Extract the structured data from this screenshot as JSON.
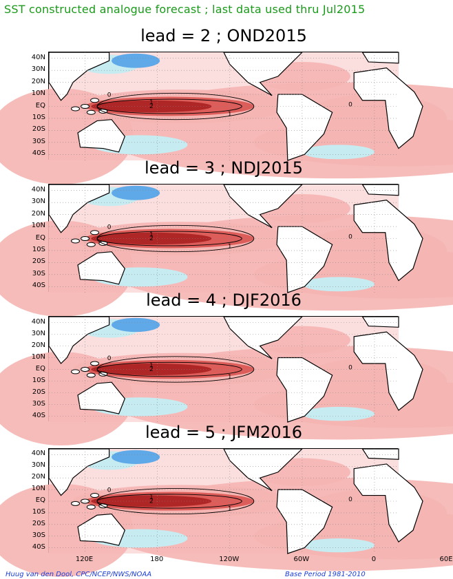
{
  "title": "SST constructed analogue forecast ; last data used thru Jul2015",
  "panels": [
    {
      "label": "lead = 2 ; OND2015"
    },
    {
      "label": "lead = 3 ; NDJ2015"
    },
    {
      "label": "lead = 4 ; DJF2016"
    },
    {
      "label": "lead = 5 ; JFM2016"
    }
  ],
  "lat_labels": [
    "40N",
    "30N",
    "20N",
    "10N",
    "EQ",
    "10S",
    "20S",
    "30S",
    "40S"
  ],
  "lon_labels": [
    "120E",
    "180",
    "120W",
    "60W",
    "0",
    "60E"
  ],
  "contour_labels": [
    "0",
    "1",
    "2"
  ],
  "footer_left": "Huug van den Dool, CPC/NCEP/NWS/NOAA",
  "footer_right": "Base Period 1981-2010",
  "colors": {
    "title": "#1a9a1a",
    "footer": "#1a3cd6",
    "warm_strong": "#a8201f",
    "warm_mid": "#d9534f",
    "warm_light": "#f5b5b3",
    "warm_faint": "#fbdede",
    "cool_light": "#c6ecf2",
    "cool_mid": "#5fa9e8"
  }
}
